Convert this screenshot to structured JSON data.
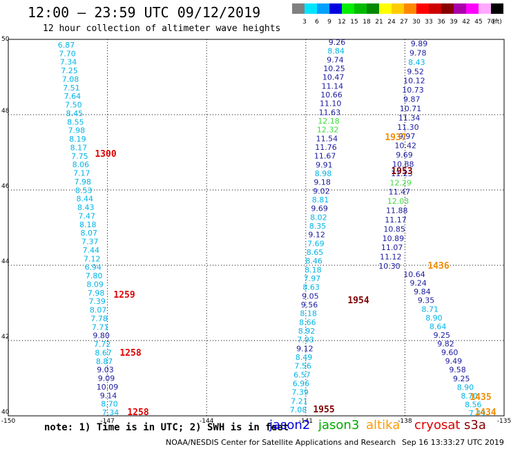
{
  "header": {
    "title": "12:00 — 23:59 UTC 09/12/2019",
    "subtitle": "12 hour collection of altimeter wave heights"
  },
  "legend": {
    "bins": [
      {
        "label": "3",
        "color": "#808080"
      },
      {
        "label": "6",
        "color": "#00e5ff"
      },
      {
        "label": "9",
        "color": "#00a0ff"
      },
      {
        "label": "12",
        "color": "#0000e0"
      },
      {
        "label": "15",
        "color": "#00ee00"
      },
      {
        "label": "18",
        "color": "#00bb00"
      },
      {
        "label": "21",
        "color": "#008800"
      },
      {
        "label": "24",
        "color": "#ffff00"
      },
      {
        "label": "27",
        "color": "#ffcc00"
      },
      {
        "label": "30",
        "color": "#ff8800"
      },
      {
        "label": "33",
        "color": "#ff0000"
      },
      {
        "label": "36",
        "color": "#cc0000"
      },
      {
        "label": "39",
        "color": "#880000"
      },
      {
        "label": "42",
        "color": "#aa00aa"
      },
      {
        "label": "45",
        "color": "#ff00ff"
      },
      {
        "label": "70",
        "color": "#ffaaff"
      },
      {
        "label": "(ft)",
        "color": "#000000"
      }
    ]
  },
  "map": {
    "lon_min": -150,
    "lon_max": -135,
    "lat_min": 40,
    "lat_max": 50,
    "lon_ticks": [
      "-150",
      "-147",
      "-144",
      "-141",
      "-138",
      "-135"
    ],
    "lat_ticks": [
      "50",
      "48",
      "46",
      "44",
      "42",
      "40"
    ]
  },
  "colors": {
    "cyan": "#00b4e6",
    "navy": "#1a1aa0",
    "green": "#3cdc3c",
    "orange": "#f08c00",
    "red": "#e00000",
    "maroon": "#800000"
  },
  "tracks": {
    "west": [
      {
        "v": "6.87",
        "c": "cyan"
      },
      {
        "v": "7.70",
        "c": "cyan"
      },
      {
        "v": "7.34",
        "c": "cyan"
      },
      {
        "v": "7.25",
        "c": "cyan"
      },
      {
        "v": "7.08",
        "c": "cyan"
      },
      {
        "v": "7.51",
        "c": "cyan"
      },
      {
        "v": "7.64",
        "c": "cyan"
      },
      {
        "v": "7.50",
        "c": "cyan"
      },
      {
        "v": "8.45",
        "c": "cyan"
      },
      {
        "v": "8.55",
        "c": "cyan"
      },
      {
        "v": "7.98",
        "c": "cyan"
      },
      {
        "v": "8.19",
        "c": "cyan"
      },
      {
        "v": "8.17",
        "c": "cyan"
      },
      {
        "v": "7.75",
        "c": "cyan"
      },
      {
        "v": "8.06",
        "c": "cyan"
      },
      {
        "v": "7.17",
        "c": "cyan"
      },
      {
        "v": "7.98",
        "c": "cyan"
      },
      {
        "v": "8.53",
        "c": "cyan"
      },
      {
        "v": "8.44",
        "c": "cyan"
      },
      {
        "v": "8.43",
        "c": "cyan"
      },
      {
        "v": "7.47",
        "c": "cyan"
      },
      {
        "v": "8.18",
        "c": "cyan"
      },
      {
        "v": "8.07",
        "c": "cyan"
      },
      {
        "v": "7.37",
        "c": "cyan"
      },
      {
        "v": "7.44",
        "c": "cyan"
      },
      {
        "v": "7.12",
        "c": "cyan"
      },
      {
        "v": "6.94",
        "c": "cyan"
      },
      {
        "v": "7.80",
        "c": "cyan"
      },
      {
        "v": "8.09",
        "c": "cyan"
      },
      {
        "v": "7.98",
        "c": "cyan"
      },
      {
        "v": "7.39",
        "c": "cyan"
      },
      {
        "v": "8.07",
        "c": "cyan"
      },
      {
        "v": "7.78",
        "c": "cyan"
      },
      {
        "v": "7.71",
        "c": "cyan"
      },
      {
        "v": "9.80",
        "c": "navy"
      },
      {
        "v": "7.72",
        "c": "cyan"
      },
      {
        "v": "8.67",
        "c": "cyan"
      },
      {
        "v": "8.87",
        "c": "cyan"
      },
      {
        "v": "9.03",
        "c": "navy"
      },
      {
        "v": "9.09",
        "c": "navy"
      },
      {
        "v": "10.09",
        "c": "navy"
      },
      {
        "v": "9.14",
        "c": "navy"
      },
      {
        "v": "8.70",
        "c": "cyan"
      },
      {
        "v": "7.34",
        "c": "cyan"
      }
    ],
    "mid_west": [
      {
        "v": "9.26",
        "c": "navy"
      },
      {
        "v": "8.84",
        "c": "cyan"
      },
      {
        "v": "9.74",
        "c": "navy"
      },
      {
        "v": "10.25",
        "c": "navy"
      },
      {
        "v": "10.47",
        "c": "navy"
      },
      {
        "v": "11.14",
        "c": "navy"
      },
      {
        "v": "10.66",
        "c": "navy"
      },
      {
        "v": "11.10",
        "c": "navy"
      },
      {
        "v": "11.63",
        "c": "navy"
      },
      {
        "v": "12.18",
        "c": "green"
      },
      {
        "v": "12.32",
        "c": "green"
      },
      {
        "v": "11.54",
        "c": "navy"
      },
      {
        "v": "11.76",
        "c": "navy"
      },
      {
        "v": "11.67",
        "c": "navy"
      },
      {
        "v": "9.91",
        "c": "navy"
      },
      {
        "v": "8.98",
        "c": "cyan"
      },
      {
        "v": "9.18",
        "c": "navy"
      },
      {
        "v": "9.02",
        "c": "navy"
      },
      {
        "v": "8.81",
        "c": "cyan"
      },
      {
        "v": "9.69",
        "c": "navy"
      },
      {
        "v": "8.02",
        "c": "cyan"
      },
      {
        "v": "8.35",
        "c": "cyan"
      },
      {
        "v": "9.12",
        "c": "navy"
      },
      {
        "v": "7.69",
        "c": "cyan"
      },
      {
        "v": "8.65",
        "c": "cyan"
      },
      {
        "v": "8.46",
        "c": "cyan"
      },
      {
        "v": "8.18",
        "c": "cyan"
      },
      {
        "v": "7.97",
        "c": "cyan"
      },
      {
        "v": "8.63",
        "c": "cyan"
      },
      {
        "v": "9.05",
        "c": "navy"
      },
      {
        "v": "9.56",
        "c": "navy"
      },
      {
        "v": "8.18",
        "c": "cyan"
      },
      {
        "v": "8.66",
        "c": "cyan"
      },
      {
        "v": "8.92",
        "c": "cyan"
      },
      {
        "v": "7.93",
        "c": "cyan"
      },
      {
        "v": "9.12",
        "c": "navy"
      },
      {
        "v": "8.49",
        "c": "cyan"
      },
      {
        "v": "7.56",
        "c": "cyan"
      },
      {
        "v": "6.57",
        "c": "cyan"
      },
      {
        "v": "6.96",
        "c": "cyan"
      },
      {
        "v": "7.39",
        "c": "cyan"
      },
      {
        "v": "7.21",
        "c": "cyan"
      },
      {
        "v": "7.08",
        "c": "cyan"
      }
    ],
    "mid_east": [
      {
        "v": "9.89",
        "c": "navy"
      },
      {
        "v": "9.78",
        "c": "navy"
      },
      {
        "v": "8.43",
        "c": "cyan"
      },
      {
        "v": "9.52",
        "c": "navy"
      },
      {
        "v": "10.12",
        "c": "navy"
      },
      {
        "v": "10.73",
        "c": "navy"
      },
      {
        "v": "9.87",
        "c": "navy"
      },
      {
        "v": "10.71",
        "c": "navy"
      },
      {
        "v": "11.34",
        "c": "navy"
      },
      {
        "v": "11.30",
        "c": "navy"
      },
      {
        "v": "9.97",
        "c": "navy"
      },
      {
        "v": "10.42",
        "c": "navy"
      },
      {
        "v": "9.69",
        "c": "navy"
      },
      {
        "v": "10.88",
        "c": "navy"
      },
      {
        "v": "11.23",
        "c": "navy"
      },
      {
        "v": "12.29",
        "c": "green"
      },
      {
        "v": "11.47",
        "c": "navy"
      },
      {
        "v": "12.03",
        "c": "green"
      },
      {
        "v": "11.88",
        "c": "navy"
      },
      {
        "v": "11.17",
        "c": "navy"
      },
      {
        "v": "10.85",
        "c": "navy"
      },
      {
        "v": "10.89",
        "c": "navy"
      },
      {
        "v": "11.07",
        "c": "navy"
      },
      {
        "v": "11.12",
        "c": "navy"
      },
      {
        "v": "10.30",
        "c": "navy"
      }
    ],
    "east": [
      {
        "v": "10.64",
        "c": "navy"
      },
      {
        "v": "9.24",
        "c": "navy"
      },
      {
        "v": "9.84",
        "c": "navy"
      },
      {
        "v": "9.35",
        "c": "navy"
      },
      {
        "v": "8.71",
        "c": "cyan"
      },
      {
        "v": "8.90",
        "c": "cyan"
      },
      {
        "v": "8.64",
        "c": "cyan"
      },
      {
        "v": "9.25",
        "c": "navy"
      },
      {
        "v": "9.82",
        "c": "navy"
      },
      {
        "v": "9.60",
        "c": "navy"
      },
      {
        "v": "9.49",
        "c": "navy"
      },
      {
        "v": "9.58",
        "c": "navy"
      },
      {
        "v": "9.25",
        "c": "navy"
      },
      {
        "v": "8.90",
        "c": "cyan"
      },
      {
        "v": "8.70",
        "c": "cyan"
      },
      {
        "v": "8.56",
        "c": "cyan"
      },
      {
        "v": "7.49",
        "c": "cyan"
      }
    ]
  },
  "time_labels": [
    {
      "t": "1300",
      "c": "red"
    },
    {
      "t": "1259",
      "c": "red"
    },
    {
      "t": "1258",
      "c": "red"
    },
    {
      "t": "1258",
      "c": "red"
    },
    {
      "t": "1953",
      "c": "maroon"
    },
    {
      "t": "1954",
      "c": "maroon"
    },
    {
      "t": "1955",
      "c": "maroon"
    },
    {
      "t": "1937",
      "c": "orange"
    },
    {
      "t": "1436",
      "c": "orange"
    },
    {
      "t": "1435",
      "c": "orange"
    },
    {
      "t": "1434",
      "c": "orange"
    }
  ],
  "footer": {
    "note": "note: 1) Time is in UTC; 2) SWH is in feet",
    "satellites": [
      {
        "name": "jason2",
        "color": "#0000e0"
      },
      {
        "name": "jason3",
        "color": "#00aa00"
      },
      {
        "name": "altika",
        "color": "#ff9900"
      },
      {
        "name": "cryosat",
        "color": "#dd0000"
      },
      {
        "name": "s3a",
        "color": "#880000"
      }
    ],
    "credit": "NOAA/NESDIS Center for Satellite Applications and Research",
    "timestamp": "Sep 16 13:33:27 UTC 2019"
  }
}
